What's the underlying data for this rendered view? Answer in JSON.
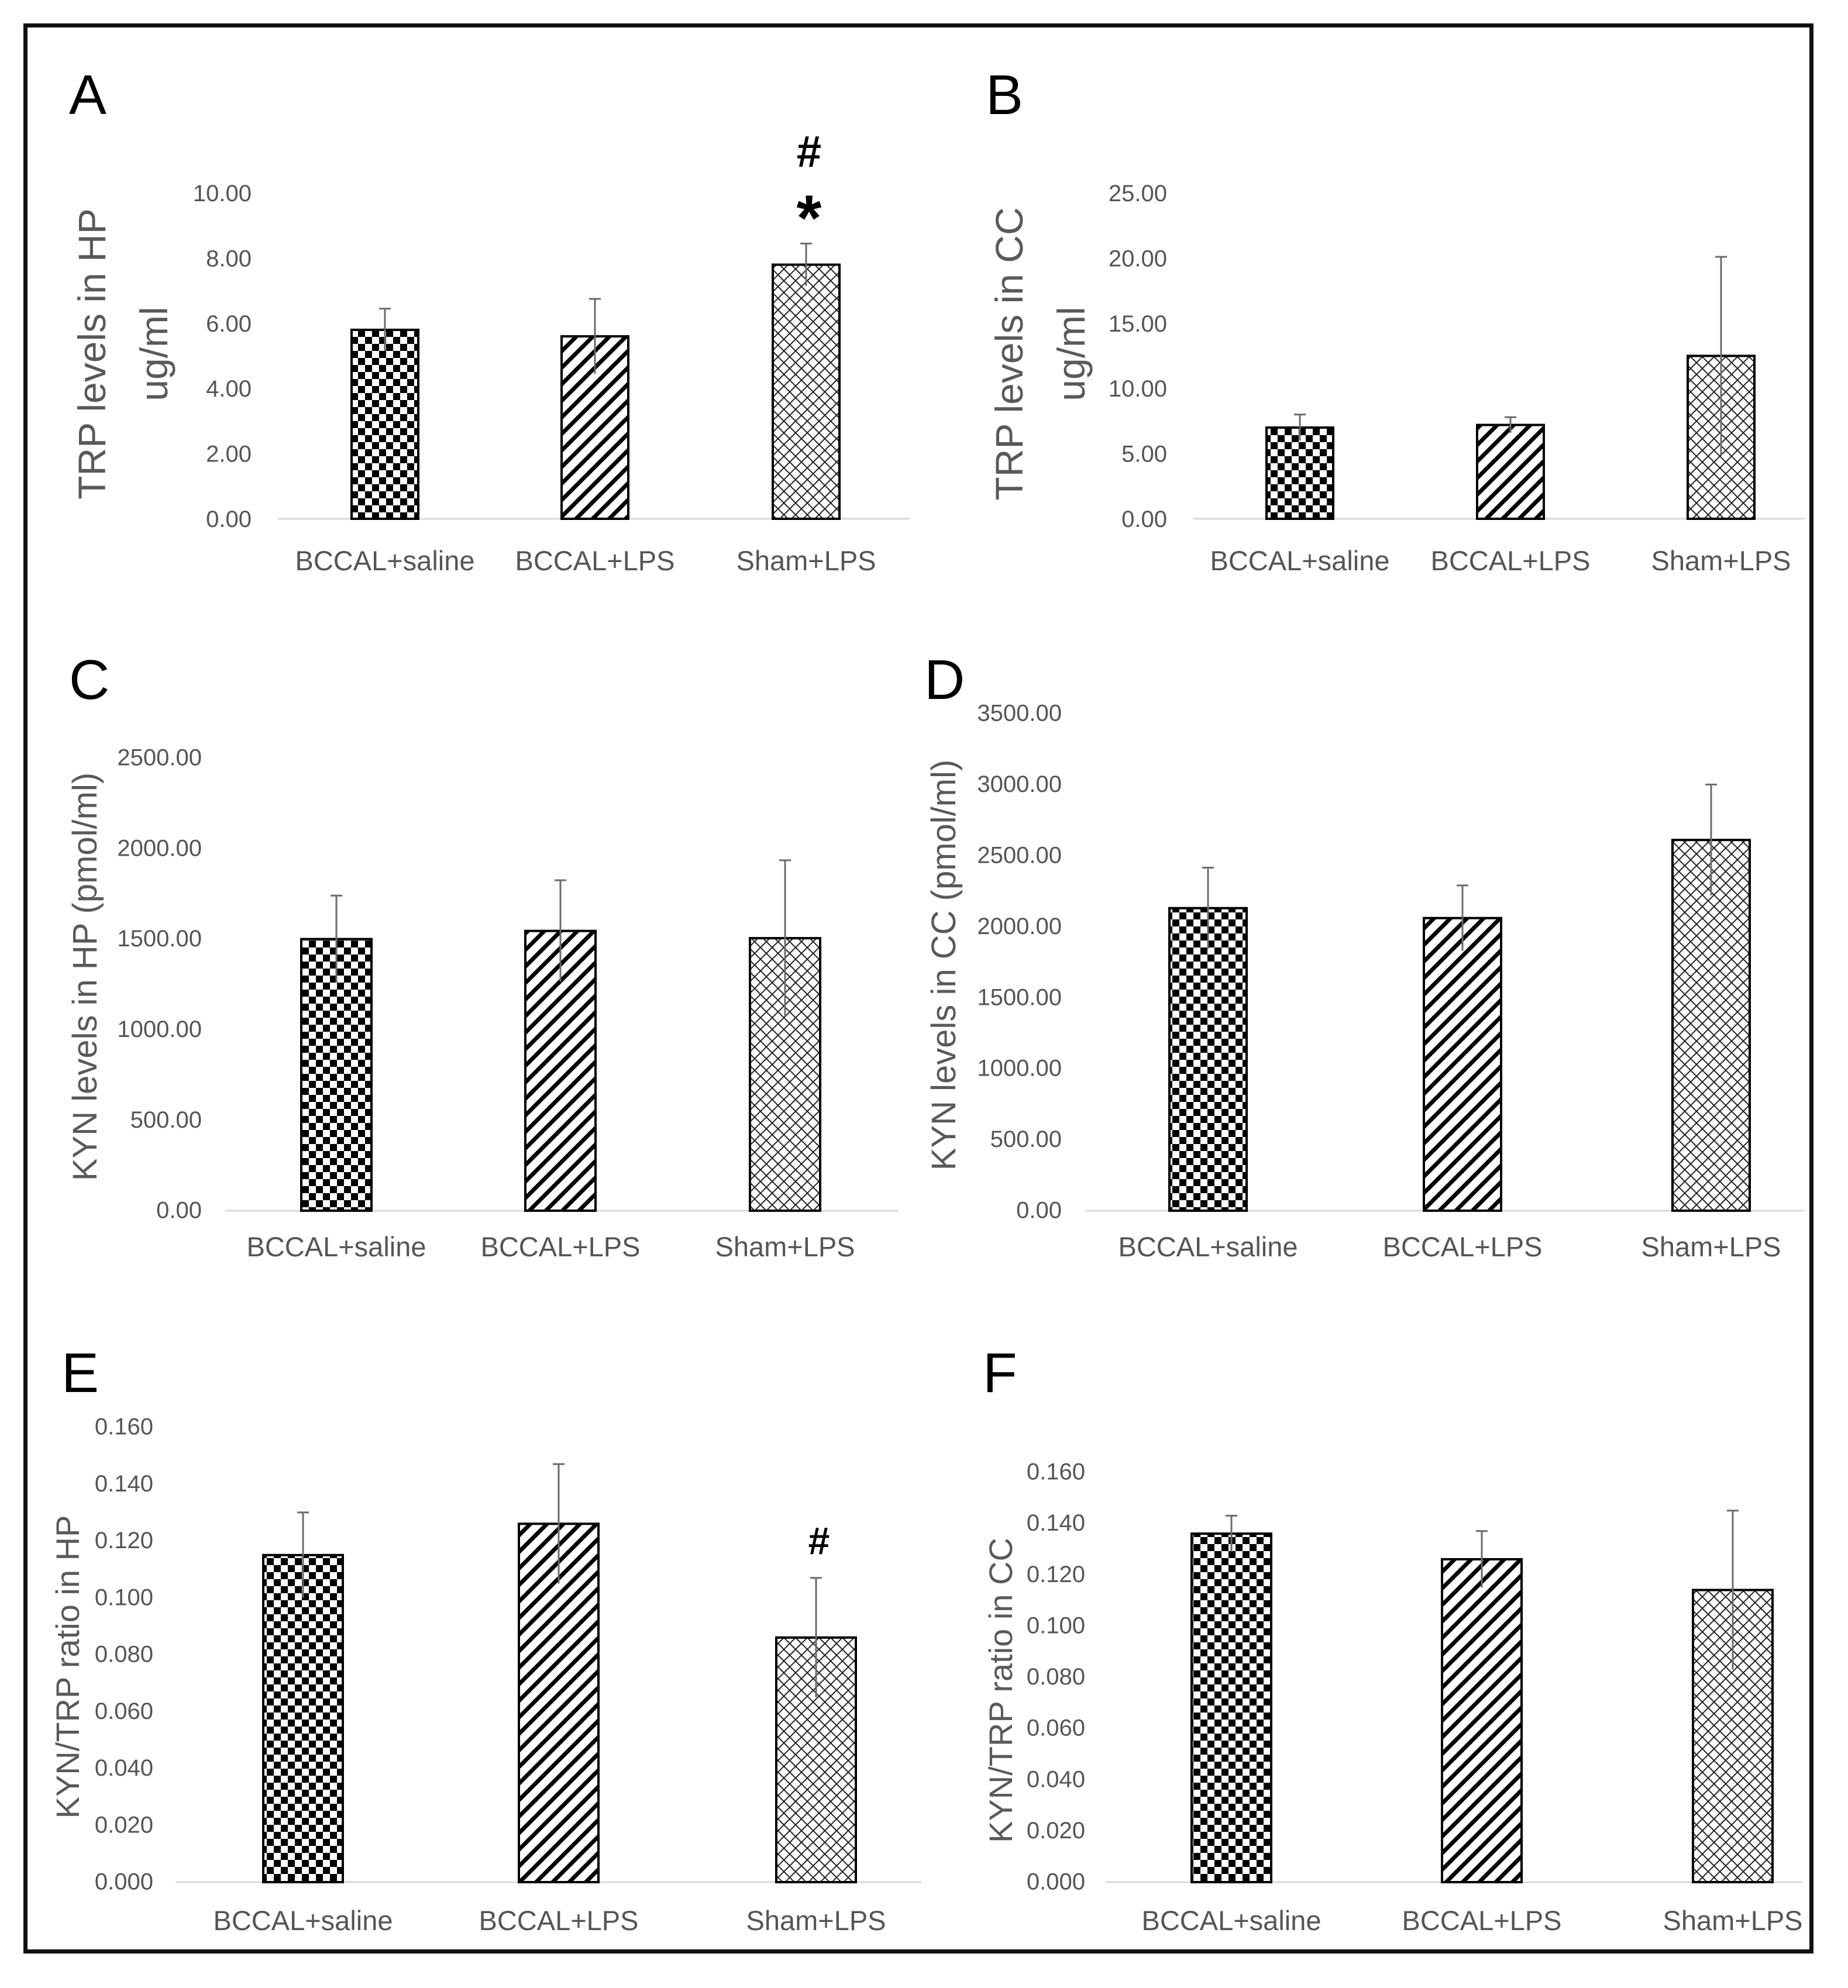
{
  "chart_data": [
    {
      "panel": "A",
      "type": "bar",
      "categories": [
        "BCCAL+saline",
        "BCCAL+LPS",
        "Sham+LPS"
      ],
      "values": [
        5.8,
        5.6,
        7.8
      ],
      "errors": [
        0.65,
        1.15,
        0.65
      ],
      "ylabel": [
        "TRP levels in HP",
        "ug/ml"
      ],
      "ylim": [
        0,
        10
      ],
      "ticks": [
        "0.00",
        "2.00",
        "4.00",
        "6.00",
        "8.00",
        "10.00"
      ],
      "annotations": [
        {
          "category": "Sham+LPS",
          "symbols": [
            "#",
            "*"
          ]
        }
      ]
    },
    {
      "panel": "B",
      "type": "bar",
      "categories": [
        "BCCAL+saline",
        "BCCAL+LPS",
        "Sham+LPS"
      ],
      "values": [
        7.0,
        7.2,
        12.5
      ],
      "errors": [
        1.0,
        0.6,
        7.6
      ],
      "ylabel": [
        "TRP levels in CC",
        "ug/ml"
      ],
      "ylim": [
        0,
        25
      ],
      "ticks": [
        "0.00",
        "5.00",
        "10.00",
        "15.00",
        "20.00",
        "25.00"
      ],
      "annotations": []
    },
    {
      "panel": "C",
      "type": "bar",
      "categories": [
        "BCCAL+saline",
        "BCCAL+LPS",
        "Sham+LPS"
      ],
      "values": [
        1500,
        1545,
        1505
      ],
      "errors": [
        240,
        280,
        430
      ],
      "ylabel": [
        "KYN levels in HP  (pmol/ml)"
      ],
      "ylim": [
        0,
        2500
      ],
      "ticks": [
        "0.00",
        "500.00",
        "1000.00",
        "1500.00",
        "2000.00",
        "2500.00"
      ],
      "annotations": []
    },
    {
      "panel": "D",
      "type": "bar",
      "categories": [
        "BCCAL+saline",
        "BCCAL+LPS",
        "Sham+LPS"
      ],
      "values": [
        2130,
        2060,
        2610
      ],
      "errors": [
        285,
        230,
        390
      ],
      "ylabel": [
        "KYN levels in CC  (pmol/ml)"
      ],
      "ylim": [
        0,
        3500
      ],
      "ticks": [
        "0.00",
        "500.00",
        "1000.00",
        "1500.00",
        "2000.00",
        "2500.00",
        "3000.00",
        "3500.00"
      ],
      "annotations": []
    },
    {
      "panel": "E",
      "type": "bar",
      "categories": [
        "BCCAL+saline",
        "BCCAL+LPS",
        "Sham+LPS"
      ],
      "values": [
        0.115,
        0.126,
        0.086
      ],
      "errors": [
        0.015,
        0.021,
        0.021
      ],
      "ylabel": [
        "KYN/TRP ratio in HP"
      ],
      "ylim": [
        0,
        0.16
      ],
      "ticks": [
        "0.000",
        "0.020",
        "0.040",
        "0.060",
        "0.080",
        "0.100",
        "0.120",
        "0.140",
        "0.160"
      ],
      "annotations": [
        {
          "category": "Sham+LPS",
          "symbols": [
            "#"
          ]
        }
      ]
    },
    {
      "panel": "F",
      "type": "bar",
      "categories": [
        "BCCAL+saline",
        "BCCAL+LPS",
        "Sham+LPS"
      ],
      "values": [
        0.136,
        0.126,
        0.114
      ],
      "errors": [
        0.007,
        0.011,
        0.031
      ],
      "ylabel": [
        "KYN/TRP ratio in CC"
      ],
      "ylim": [
        0,
        0.16
      ],
      "ticks": [
        "0.000",
        "0.020",
        "0.040",
        "0.060",
        "0.080",
        "0.100",
        "0.120",
        "0.140",
        "0.160"
      ],
      "annotations": []
    }
  ]
}
